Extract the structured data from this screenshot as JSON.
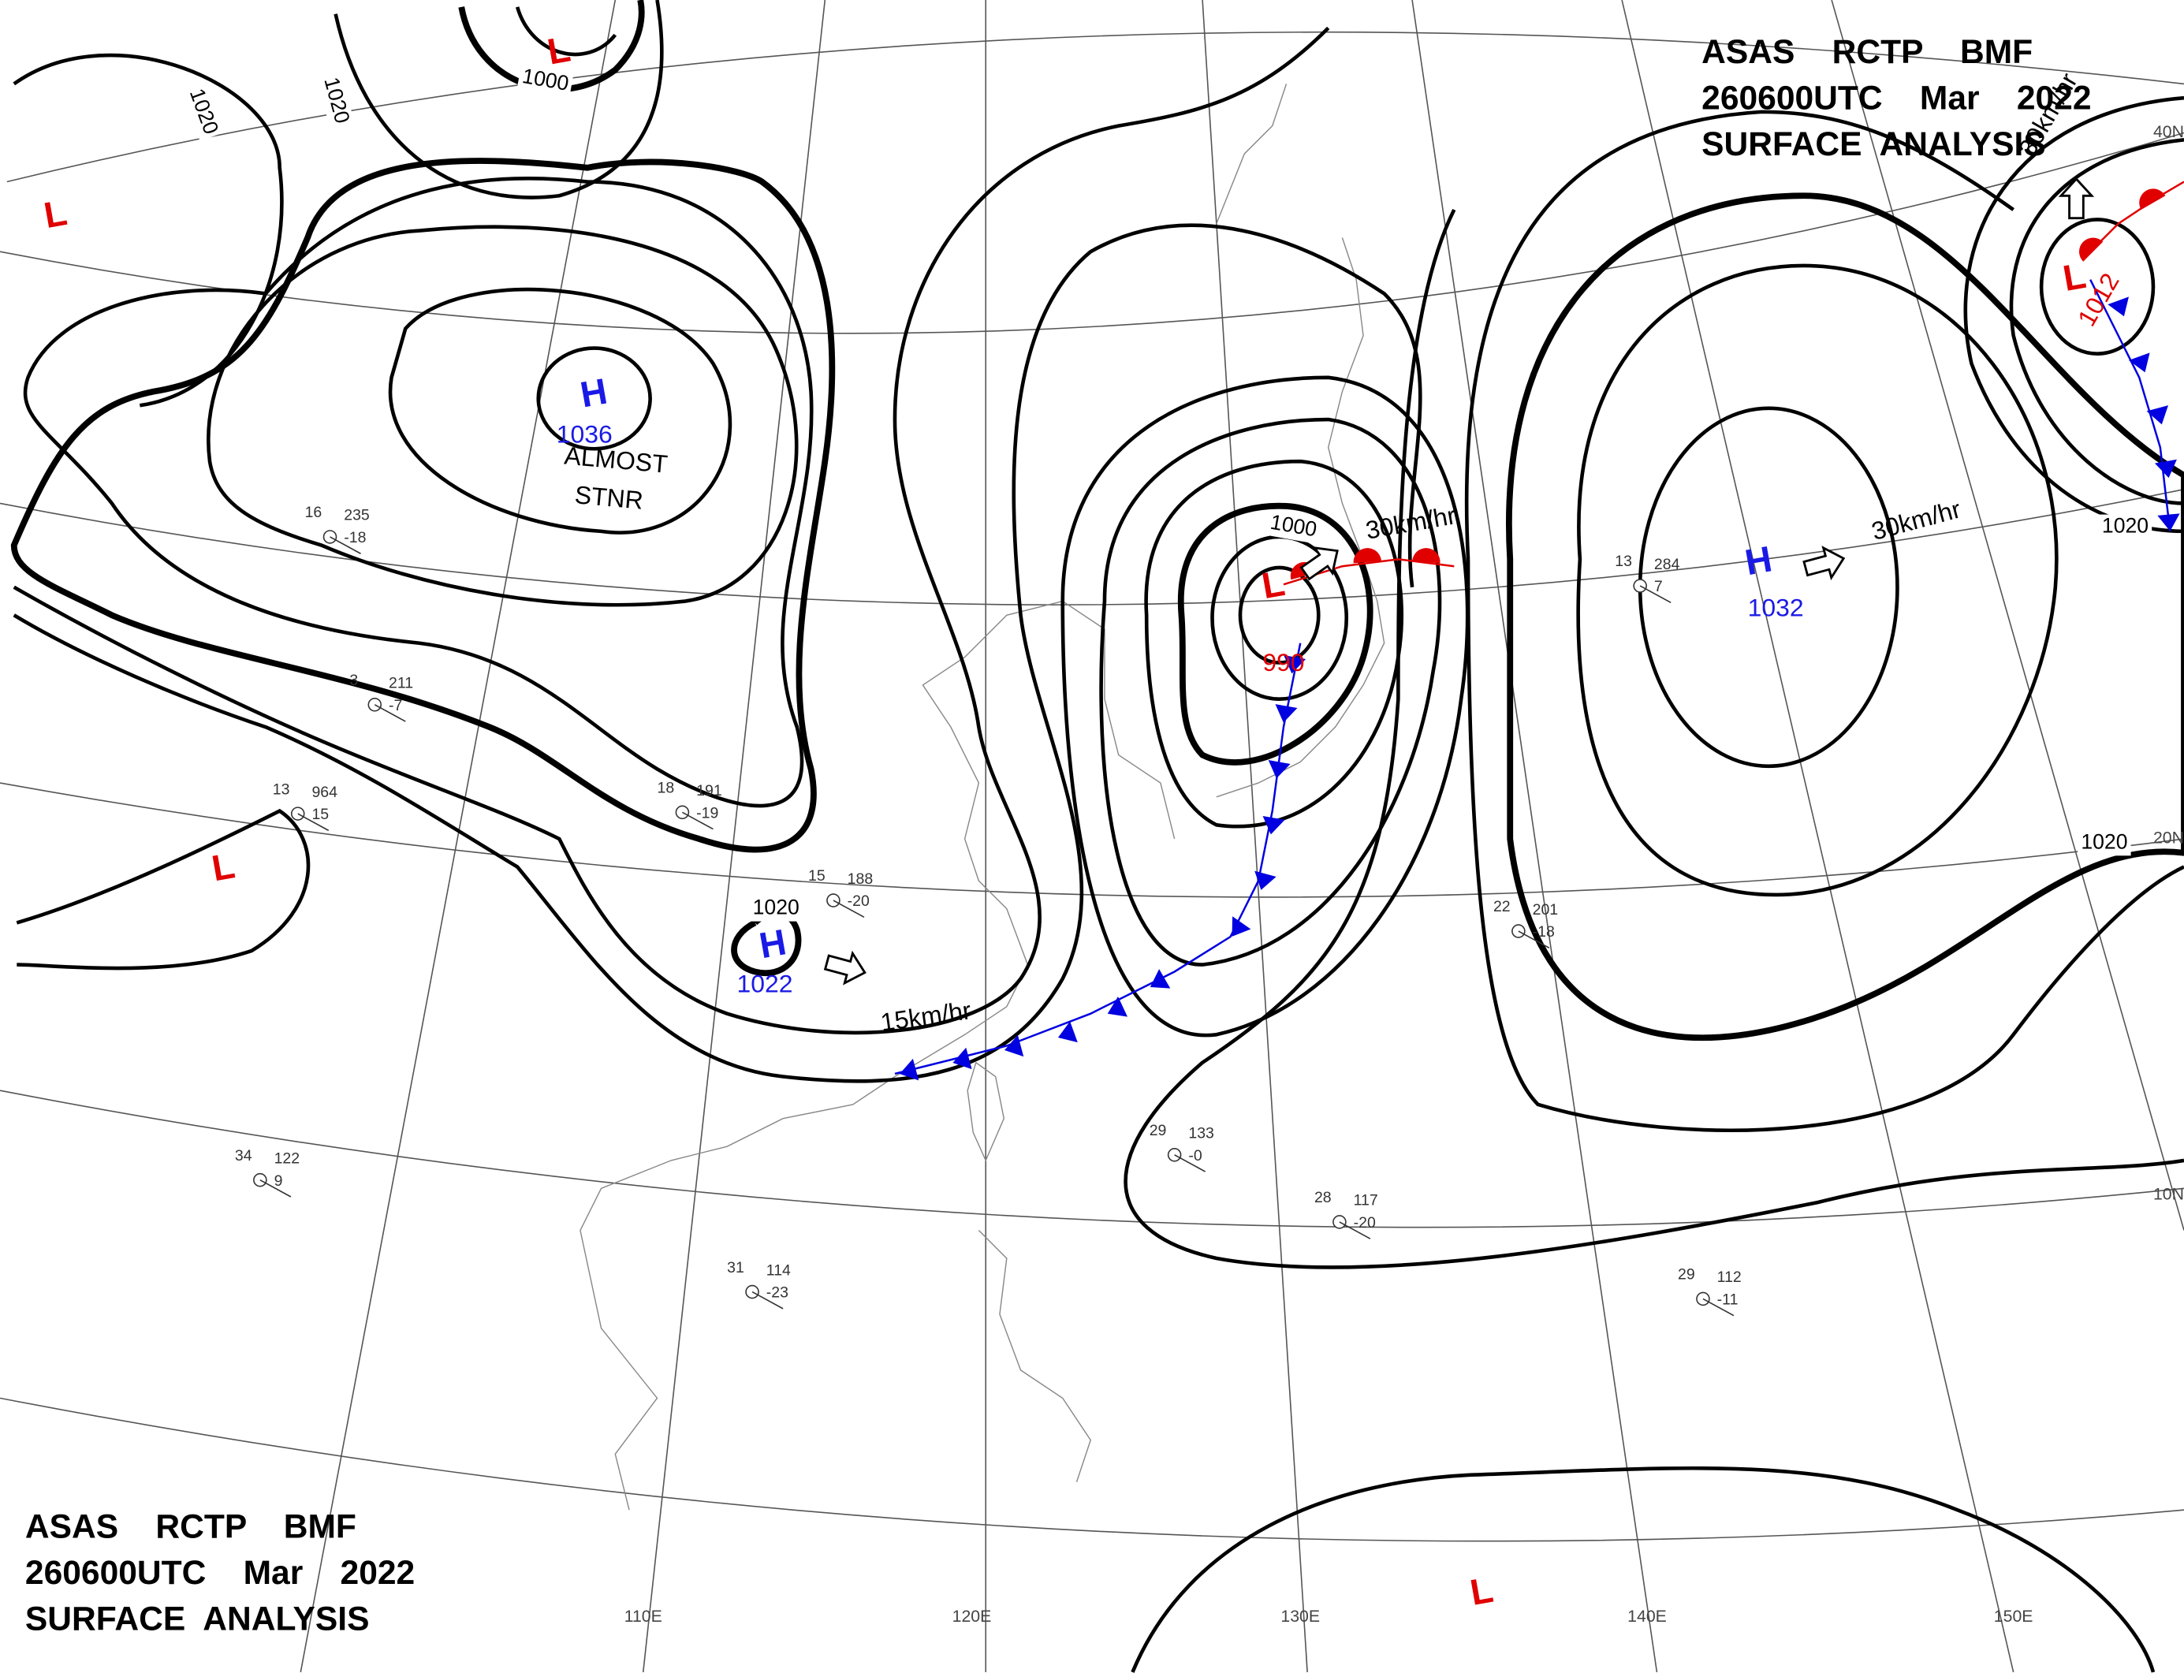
{
  "title_block": {
    "lines": [
      "ASAS    RCTP    BMF",
      "260600UTC    Mar    2022",
      "SURFACE  ANALYSIS"
    ]
  },
  "pressure_centers": [
    {
      "type": "H",
      "value": "1036"
    },
    {
      "type": "L",
      "value": "990"
    },
    {
      "type": "H",
      "value": "1022"
    },
    {
      "type": "H",
      "value": "1032"
    },
    {
      "type": "L",
      "value": "1012"
    },
    {
      "type": "L"
    },
    {
      "type": "L"
    },
    {
      "type": "L"
    },
    {
      "type": "L"
    }
  ],
  "stationary_note": [
    "ALMOST",
    "STNR"
  ],
  "movements": [
    "30km/hr",
    "30km/hr",
    "15km/hr",
    "30km/hr"
  ],
  "isobar_labels": [
    "1020",
    "1020",
    "1000",
    "1000",
    "1020",
    "1020",
    "1020"
  ],
  "longitude_labels": [
    "110E",
    "120E",
    "130E",
    "140E",
    "150E"
  ],
  "latitude_labels": [
    "40N",
    "20N",
    "10N"
  ],
  "stations": [
    {
      "temp": "16",
      "pressure": "235",
      "dew": "-18"
    },
    {
      "temp": "3",
      "pressure": "211",
      "dew": "-7"
    },
    {
      "temp": "13",
      "pressure": "964",
      "dew": "15"
    },
    {
      "temp": "18",
      "pressure": "191",
      "dew": "-19"
    },
    {
      "temp": "15",
      "pressure": "188",
      "dew": "-20"
    },
    {
      "temp": "22",
      "pressure": "201",
      "dew": "-18"
    },
    {
      "temp": "13",
      "pressure": "284",
      "dew": "7"
    },
    {
      "temp": "29",
      "pressure": "133",
      "dew": "-0"
    },
    {
      "temp": "28",
      "pressure": "117",
      "dew": "-20"
    },
    {
      "temp": "29",
      "pressure": "112",
      "dew": "-11"
    },
    {
      "temp": "31",
      "pressure": "114",
      "dew": "-23"
    },
    {
      "temp": "34",
      "pressure": "122",
      "dew": "9"
    }
  ]
}
